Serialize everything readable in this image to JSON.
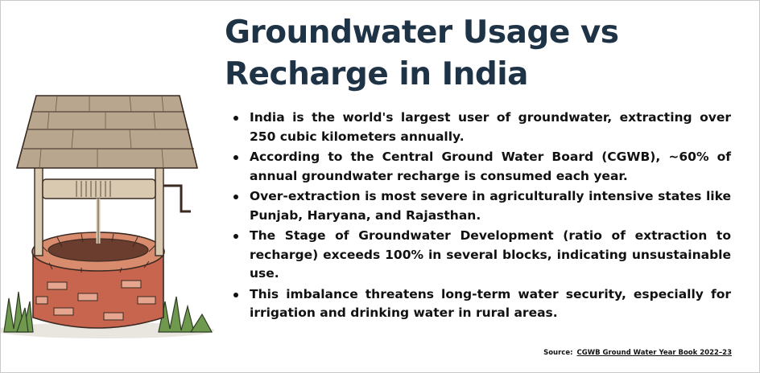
{
  "title": {
    "line1": "Groundwater Usage vs",
    "line2": "Recharge in India"
  },
  "bullets": [
    "India is the world's largest user of groundwater, extracting over 250 cubic kilometers annually.",
    "According to the Central Ground Water Board (CGWB), ~60% of annual groundwater recharge is consumed each year.",
    "Over-extraction is most severe in agriculturally intensive states like Punjab, Haryana, and Rajasthan.",
    "The Stage of Groundwater Development (ratio of extraction to recharge) exceeds 100% in several blocks, indicating unsustainable use.",
    "This imbalance threatens long-term water security, especially for irrigation and drinking water in rural areas."
  ],
  "source": {
    "label": "Source:",
    "link_text": "CGWB Ground Water Year Book 2022–23"
  },
  "colors": {
    "title": "#1f3347",
    "text": "#111111",
    "brick": "#c8654f",
    "wood": "#b9a68e",
    "grass": "#6f9a4e"
  }
}
